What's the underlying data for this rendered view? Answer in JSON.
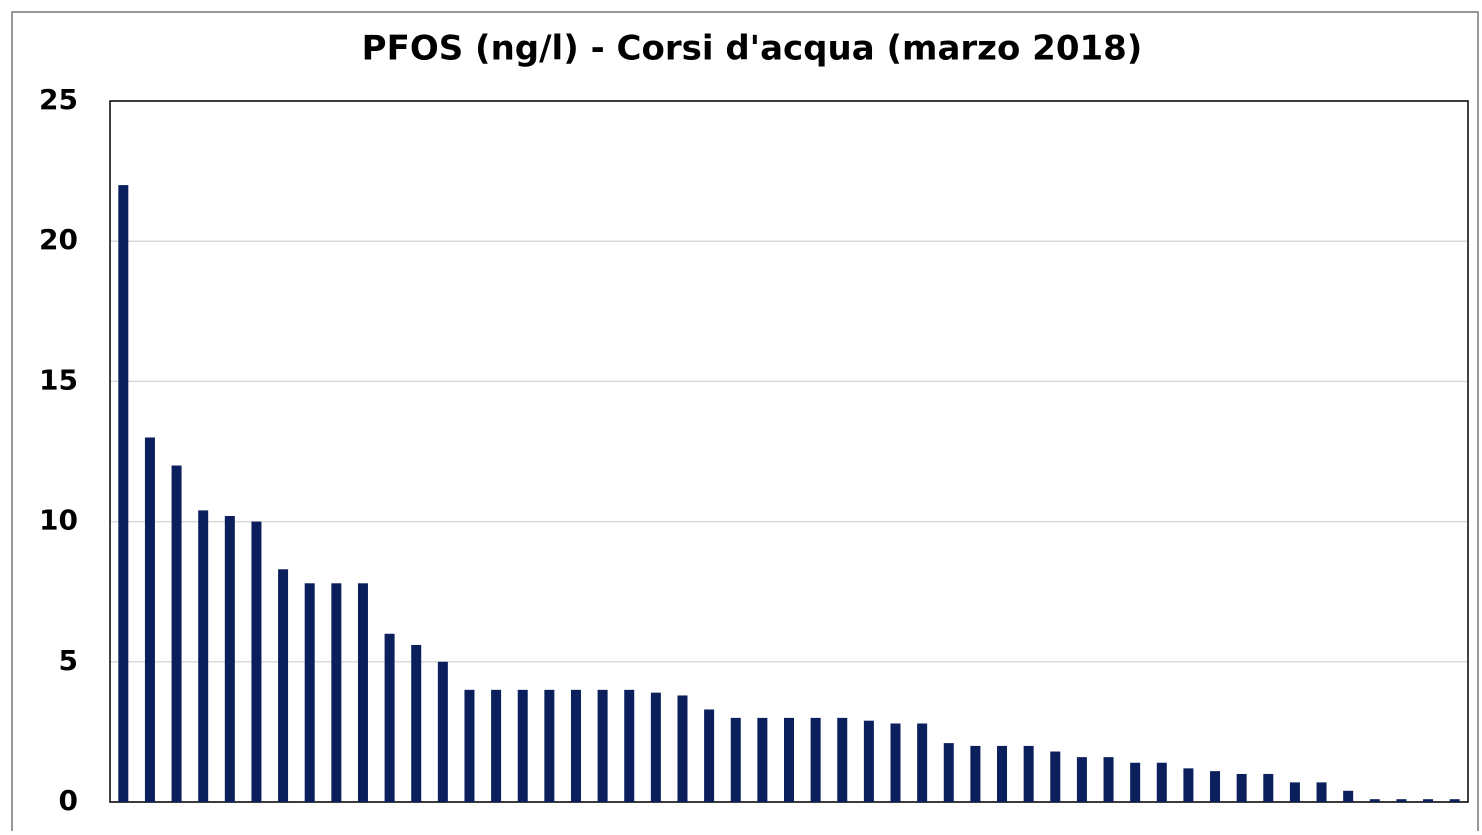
{
  "chart_data": {
    "type": "bar",
    "title": "PFOS (ng/l) - Corsi d'acqua (marzo 2018)",
    "categories": [
      null,
      null,
      null,
      null,
      null,
      null,
      null,
      null,
      null,
      null,
      null,
      null,
      null,
      null,
      null,
      null,
      null,
      null,
      null,
      null,
      null,
      null,
      null,
      null,
      null,
      null,
      null,
      null,
      null,
      null,
      null,
      null,
      null,
      null,
      null,
      null,
      null,
      null,
      null,
      null,
      null,
      null,
      null,
      null,
      null,
      null,
      null,
      null,
      null,
      null,
      null
    ],
    "values": [
      22.0,
      13.0,
      12.0,
      10.4,
      10.2,
      10.0,
      8.3,
      7.8,
      7.8,
      7.8,
      6.0,
      5.6,
      5.0,
      4.0,
      4.0,
      4.0,
      4.0,
      4.0,
      4.0,
      4.0,
      3.9,
      3.8,
      3.3,
      3.0,
      3.0,
      3.0,
      3.0,
      3.0,
      2.9,
      2.8,
      2.8,
      2.1,
      2.0,
      2.0,
      2.0,
      1.8,
      1.6,
      1.6,
      1.4,
      1.4,
      1.2,
      1.1,
      1.0,
      1.0,
      0.7,
      0.7,
      0.4,
      0.1,
      0.1,
      0.1,
      0.1
    ],
    "color": "#0a1f5c",
    "ylim": [
      0,
      25
    ],
    "yticks": [
      0,
      5,
      10,
      15,
      20,
      25
    ],
    "grid": true
  }
}
